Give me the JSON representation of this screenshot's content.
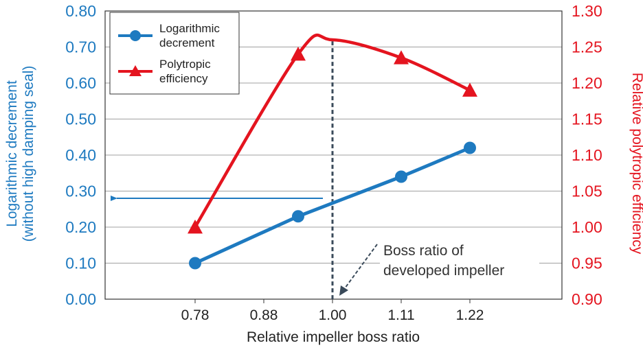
{
  "chart_data": {
    "type": "line",
    "categories": [
      "0.78",
      "0.88",
      "1.00",
      "1.11",
      "1.22"
    ],
    "xlabel": "Relative impeller boss ratio",
    "y_left": {
      "label": "Logarithmic decrement (without high damping seal)",
      "label_lines": [
        "Logarithmic decrement",
        "(without high damping seal)"
      ],
      "ylim": [
        0.0,
        0.8
      ],
      "ticks": [
        "0.00",
        "0.10",
        "0.20",
        "0.30",
        "0.40",
        "0.50",
        "0.60",
        "0.70",
        "0.80"
      ]
    },
    "y_right": {
      "label": "Relative polytropic efficiency",
      "ylim": [
        0.9,
        1.3
      ],
      "ticks": [
        "0.90",
        "0.95",
        "1.00",
        "1.05",
        "1.10",
        "1.15",
        "1.20",
        "1.25",
        "1.30"
      ]
    },
    "series": [
      {
        "name": "Logarithmic decrement",
        "name_lines": [
          "Logarithmic",
          "decrement"
        ],
        "axis": "left",
        "marker": "circle",
        "color": "#1e7ac0",
        "points": [
          [
            0.78,
            0.1
          ],
          [
            0.94,
            0.23
          ],
          [
            1.11,
            0.34
          ],
          [
            1.22,
            0.42
          ]
        ]
      },
      {
        "name": "Polytropic efficiency",
        "name_lines": [
          "Polytropic",
          "efficiency"
        ],
        "axis": "right",
        "marker": "triangle",
        "color": "#e4141f",
        "points": [
          [
            0.78,
            1.0
          ],
          [
            0.94,
            1.24
          ],
          [
            1.11,
            1.235
          ],
          [
            1.22,
            1.19
          ]
        ],
        "curve_peak": [
          1.0,
          1.26
        ]
      }
    ],
    "reference_line": {
      "x": 1.0,
      "style": "dashed",
      "color": "#3a4a5a"
    },
    "arrow_annotation": {
      "from_x": 1.0,
      "y_left": 0.28,
      "direction": "left",
      "color": "#1e7ac0"
    },
    "annotation": {
      "lines": [
        "Boss ratio of",
        "developed impeller"
      ]
    },
    "grid": "horizontal",
    "legend": "top-left"
  }
}
